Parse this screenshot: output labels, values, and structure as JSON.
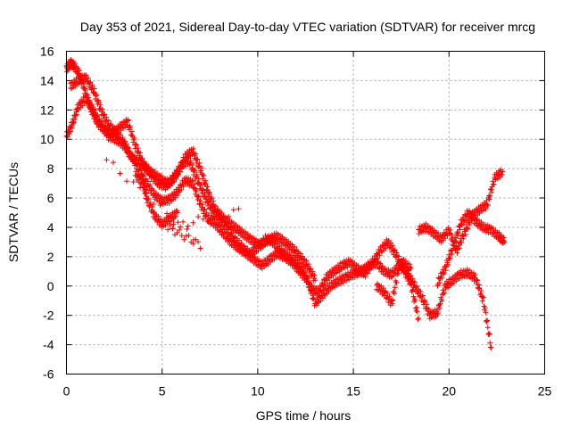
{
  "chart_data": {
    "type": "scatter",
    "title": "Day 353 of 2021, Sidereal Day-to-day VTEC variation (SDTVAR) for receiver mrcg",
    "xlabel": "GPS time / hours",
    "ylabel": "SDTVAR / TECUs",
    "xlim": [
      0,
      25
    ],
    "ylim": [
      -6,
      16
    ],
    "xticks": [
      "0",
      "5",
      "10",
      "15",
      "20",
      "25"
    ],
    "yticks": [
      "-6",
      "-4",
      "-2",
      "0",
      "2",
      "4",
      "6",
      "8",
      "10",
      "12",
      "14",
      "16"
    ],
    "grid": true,
    "marker": "+",
    "color": "#ff0000",
    "series": [
      {
        "name": "s1",
        "x": [
          0.0,
          0.3,
          0.6,
          1.0,
          1.4,
          1.8,
          2.2,
          2.6,
          3.0,
          3.4,
          3.8,
          4.2,
          4.6,
          5.0,
          5.4,
          5.8,
          6.2,
          6.6,
          7.0,
          7.4,
          7.8,
          8.2,
          8.6,
          9.0,
          9.4,
          9.8,
          10.2,
          10.6,
          11.0,
          11.4,
          11.8,
          12.2,
          12.6,
          13.0,
          13.4,
          13.8,
          14.2,
          14.6,
          15.0,
          15.4,
          15.8,
          16.2,
          16.6,
          17.0,
          17.4,
          17.8,
          18.2,
          18.6,
          19.0,
          19.4,
          19.8,
          20.2,
          20.6,
          21.0,
          21.4,
          21.8,
          22.2
        ],
        "y": [
          10.2,
          11.0,
          12.2,
          12.8,
          12.0,
          11.0,
          10.2,
          10.0,
          9.6,
          8.8,
          8.0,
          7.0,
          6.2,
          5.8,
          5.9,
          6.4,
          7.2,
          7.0,
          5.6,
          4.6,
          4.2,
          3.6,
          3.0,
          2.6,
          2.2,
          1.8,
          1.4,
          1.8,
          2.2,
          2.0,
          1.6,
          1.0,
          0.4,
          -1.2,
          -0.6,
          0.0,
          0.3,
          0.6,
          0.8,
          1.0,
          1.4,
          1.6,
          1.0,
          0.8,
          1.4,
          1.0,
          0.0,
          -0.8,
          -2.0,
          -1.8,
          0.0,
          0.4,
          0.8,
          0.9,
          0.5,
          -1.0,
          -4.2
        ]
      },
      {
        "name": "s2",
        "x": [
          0.0,
          0.2,
          0.4,
          0.7,
          1.0,
          1.3,
          1.6,
          2.0,
          2.4,
          2.8,
          3.2,
          3.6,
          4.0,
          4.4,
          4.8,
          5.2,
          5.6,
          6.0,
          6.4,
          6.8,
          7.2,
          7.6,
          8.0,
          8.4,
          8.8,
          9.2,
          9.6,
          10.0,
          10.4,
          10.8,
          11.2,
          11.6,
          12.0,
          12.4,
          12.8,
          13.2,
          13.6,
          14.0,
          14.4,
          14.8,
          15.2,
          15.6,
          16.0,
          16.4,
          16.8,
          17.2,
          17.6,
          18.0,
          18.4
        ],
        "y": [
          14.8,
          15.2,
          15.0,
          14.4,
          13.2,
          12.0,
          11.2,
          10.6,
          10.4,
          10.8,
          11.2,
          9.6,
          8.4,
          7.6,
          7.0,
          6.8,
          7.4,
          8.2,
          8.6,
          7.4,
          6.2,
          5.2,
          4.6,
          4.0,
          3.2,
          2.6,
          2.2,
          2.6,
          3.2,
          3.0,
          2.4,
          2.0,
          1.6,
          1.0,
          -0.2,
          -0.4,
          0.6,
          1.0,
          1.4,
          1.6,
          1.2,
          0.8,
          1.6,
          2.4,
          3.0,
          2.2,
          1.2,
          0.2,
          -2.2
        ]
      },
      {
        "name": "s3",
        "x": [
          0.2,
          0.6,
          1.0,
          1.4,
          1.8,
          2.2,
          2.6,
          3.0,
          3.4,
          3.8,
          4.2,
          4.6,
          5.0,
          5.4,
          5.8,
          6.2,
          6.6,
          7.0,
          7.4,
          7.8,
          8.2,
          8.6,
          9.0,
          9.4,
          9.8,
          10.2,
          10.6,
          11.0,
          11.4,
          11.8,
          12.2,
          12.6,
          13.0
        ],
        "y": [
          13.6,
          14.0,
          14.2,
          13.4,
          12.0,
          11.0,
          10.4,
          9.8,
          8.8,
          8.4,
          8.0,
          7.6,
          7.2,
          7.0,
          7.6,
          8.8,
          9.2,
          8.0,
          6.4,
          5.2,
          4.6,
          4.2,
          3.8,
          3.4,
          3.0,
          2.8,
          3.2,
          3.4,
          3.0,
          2.6,
          2.0,
          1.4,
          0.4
        ]
      },
      {
        "name": "s4",
        "x": [
          18.4,
          18.8,
          19.2,
          19.6,
          20.0,
          20.4,
          20.8,
          21.2,
          21.6,
          22.0,
          22.4,
          22.8
        ],
        "y": [
          3.8,
          4.0,
          3.6,
          3.2,
          3.8,
          2.4,
          3.6,
          4.8,
          5.2,
          5.6,
          7.4,
          7.8
        ]
      },
      {
        "name": "s5",
        "x": [
          19.4,
          19.8,
          20.2,
          20.6,
          21.0,
          21.4,
          21.8,
          22.2,
          22.6,
          22.9
        ],
        "y": [
          0.2,
          1.2,
          2.6,
          4.2,
          5.0,
          4.4,
          4.0,
          3.8,
          3.4,
          3.0
        ]
      },
      {
        "name": "s6",
        "x": [
          16.2,
          16.6,
          17.0,
          17.4,
          17.6,
          18.0
        ],
        "y": [
          0.0,
          -0.4,
          -1.2,
          1.4,
          1.6,
          1.2
        ]
      },
      {
        "name": "s7",
        "x": [
          3.6,
          4.0,
          4.2,
          4.6,
          5.0,
          5.4,
          5.8
        ],
        "y": [
          7.6,
          7.0,
          6.0,
          4.8,
          4.2,
          4.6,
          5.0
        ]
      },
      {
        "name": "s8",
        "x": [
          9.0,
          5.3,
          7.0,
          2.1
        ],
        "y": [
          5.1,
          4.0,
          2.8,
          8.6
        ]
      }
    ]
  }
}
